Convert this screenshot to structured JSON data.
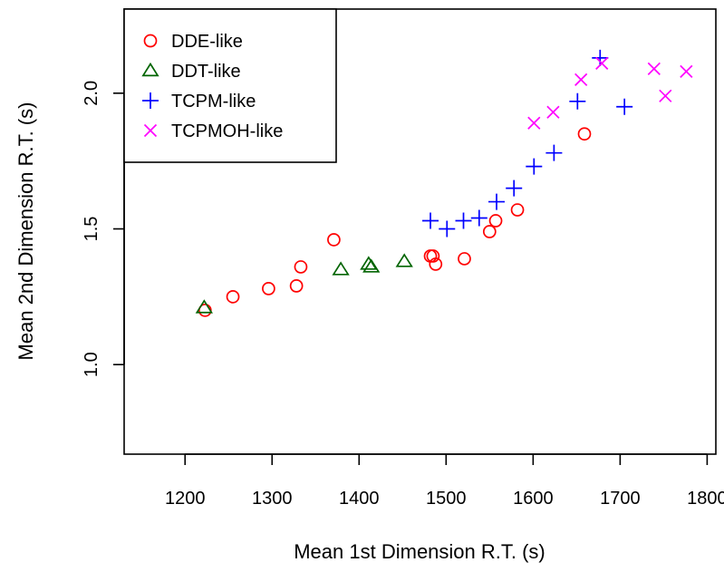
{
  "chart_data": {
    "type": "scatter",
    "title": "",
    "xlabel": "Mean 1st Dimension R.T. (s)",
    "ylabel": "Mean 2nd Dimension R.T. (s)",
    "xlim": [
      1130,
      1810
    ],
    "ylim": [
      0.67,
      2.31
    ],
    "xticks": [
      1200,
      1300,
      1400,
      1500,
      1600,
      1700,
      1800
    ],
    "yticks": [
      1.0,
      1.5,
      2.0
    ],
    "grid": false,
    "legend_position": "top-left",
    "series": [
      {
        "name": "DDE-like",
        "marker": "circle",
        "color": "#ff0000",
        "points": [
          [
            1223,
            1.2
          ],
          [
            1255,
            1.25
          ],
          [
            1296,
            1.28
          ],
          [
            1328,
            1.29
          ],
          [
            1333,
            1.36
          ],
          [
            1371,
            1.46
          ],
          [
            1482,
            1.4
          ],
          [
            1485,
            1.4
          ],
          [
            1488,
            1.37
          ],
          [
            1521,
            1.39
          ],
          [
            1550,
            1.49
          ],
          [
            1557,
            1.53
          ],
          [
            1582,
            1.57
          ],
          [
            1659,
            1.85
          ]
        ]
      },
      {
        "name": "DDT-like",
        "marker": "triangle",
        "color": "#006400",
        "points": [
          [
            1222,
            1.21
          ],
          [
            1379,
            1.35
          ],
          [
            1411,
            1.37
          ],
          [
            1414,
            1.36
          ],
          [
            1452,
            1.38
          ]
        ]
      },
      {
        "name": "TCPM-like",
        "marker": "plus",
        "color": "#0000ff",
        "points": [
          [
            1482,
            1.53
          ],
          [
            1501,
            1.5
          ],
          [
            1520,
            1.53
          ],
          [
            1538,
            1.54
          ],
          [
            1558,
            1.6
          ],
          [
            1578,
            1.65
          ],
          [
            1601,
            1.73
          ],
          [
            1624,
            1.78
          ],
          [
            1651,
            1.97
          ],
          [
            1677,
            2.13
          ],
          [
            1705,
            1.95
          ]
        ]
      },
      {
        "name": "TCPMOH-like",
        "marker": "cross",
        "color": "#ff00ff",
        "points": [
          [
            1601,
            1.89
          ],
          [
            1623,
            1.93
          ],
          [
            1655,
            2.05
          ],
          [
            1679,
            2.11
          ],
          [
            1739,
            2.09
          ],
          [
            1752,
            1.99
          ],
          [
            1776,
            2.08
          ]
        ]
      }
    ]
  }
}
